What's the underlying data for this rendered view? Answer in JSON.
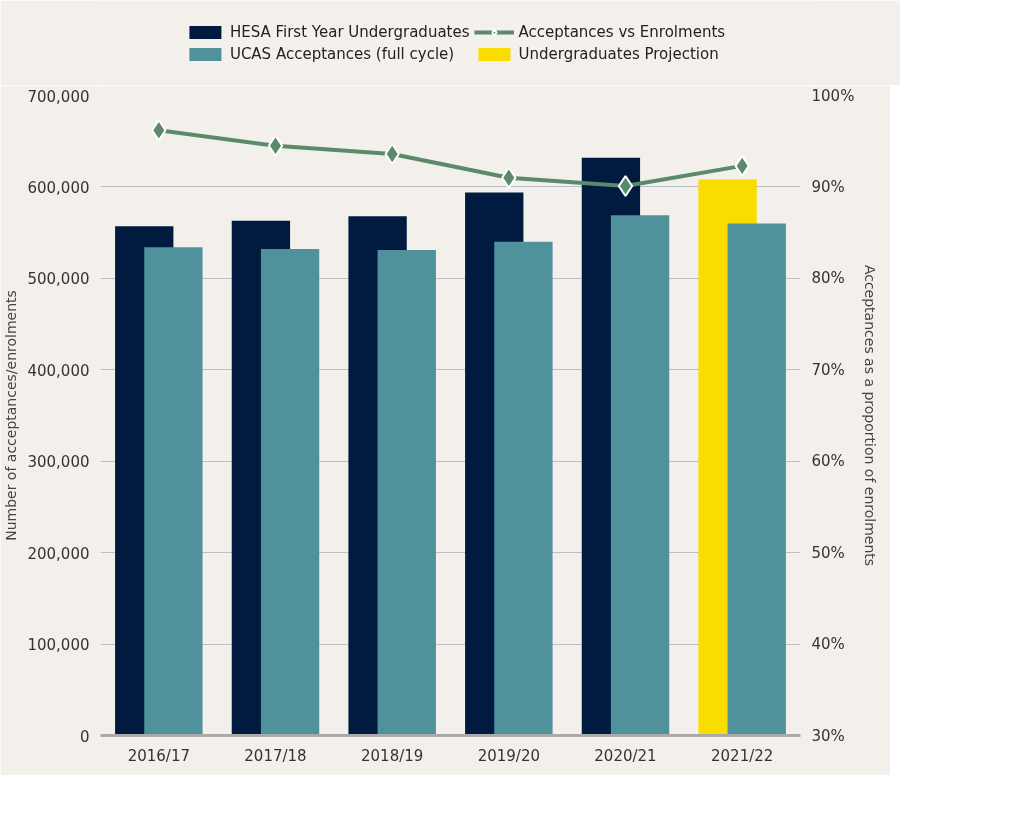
{
  "chart_data": {
    "type": "bar",
    "categories": [
      "2016/17",
      "2017/18",
      "2018/19",
      "2019/20",
      "2020/21",
      "2021/22"
    ],
    "ylabel": "Number of acceptances/enrolments",
    "y2label": "Acceptances as a proportion of enrolments",
    "series": [
      {
        "name": "HESA First Year Undergraduates",
        "color": "#001a40",
        "values": [
          557000,
          563000,
          568000,
          594000,
          632000,
          null
        ]
      },
      {
        "name": "UCAS Acceptances (full cycle)",
        "color": "#4f929b",
        "values": [
          534000,
          532000,
          531000,
          540000,
          569000,
          560000
        ]
      },
      {
        "name": "Acceptances vs Enrolments",
        "type": "line",
        "axis": "y2",
        "color": "#5a8a6a",
        "marker": "diamond",
        "values": [
          96.2,
          94.5,
          93.6,
          91.0,
          90.1,
          92.3
        ]
      },
      {
        "name": "Undergraduates Projection",
        "color": "#f9dc00",
        "values": [
          null,
          null,
          null,
          null,
          null,
          608000
        ]
      }
    ],
    "ylim": [
      0,
      700000
    ],
    "yticks": [
      {
        "value": 0,
        "label": "0"
      },
      {
        "value": 100000,
        "label": "100,000"
      },
      {
        "value": 200000,
        "label": "200,000"
      },
      {
        "value": 300000,
        "label": "300,000"
      },
      {
        "value": 400000,
        "label": "400,000"
      },
      {
        "value": 500000,
        "label": "500,000"
      },
      {
        "value": 600000,
        "label": "600,000"
      },
      {
        "value": 700000,
        "label": "700,000"
      }
    ],
    "y2lim": [
      30,
      100
    ],
    "y2ticks": [
      {
        "value": 30,
        "label": "30%"
      },
      {
        "value": 40,
        "label": "40%"
      },
      {
        "value": 50,
        "label": "50%"
      },
      {
        "value": 60,
        "label": "60%"
      },
      {
        "value": 70,
        "label": "70%"
      },
      {
        "value": 80,
        "label": "80%"
      },
      {
        "value": 90,
        "label": "90%"
      },
      {
        "value": 100,
        "label": "100%"
      }
    ],
    "grid": "y",
    "legend": "top"
  }
}
